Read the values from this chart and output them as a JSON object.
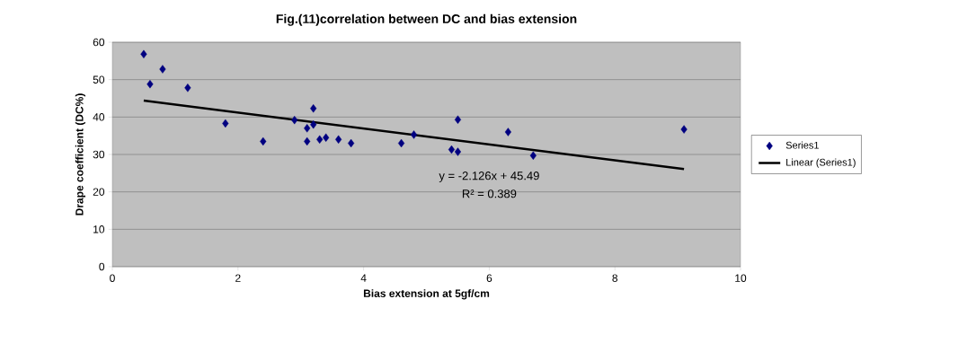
{
  "chart_data": {
    "type": "scatter",
    "title": "Fig.(11)correlation between DC and bias extension",
    "xlabel": "Bias extension at 5gf/cm",
    "ylabel": "Drape coefficient (DC%)",
    "series": [
      {
        "name": "Series1",
        "color": "#000080",
        "marker": "diamond",
        "x": [
          0.5,
          0.6,
          0.8,
          1.2,
          1.8,
          2.4,
          2.9,
          3.1,
          3.1,
          3.2,
          3.2,
          3.3,
          3.4,
          3.6,
          3.8,
          4.6,
          4.8,
          5.4,
          5.5,
          5.5,
          6.3,
          6.7,
          9.1
        ],
        "values": [
          56.8,
          48.8,
          52.8,
          47.8,
          38.3,
          33.5,
          39.2,
          37,
          33.5,
          42.3,
          38,
          34,
          34.5,
          34,
          33,
          33,
          35.3,
          31.3,
          30.7,
          39.3,
          36,
          29.7,
          36.7
        ]
      },
      {
        "name": "Linear (Series1)",
        "type": "line",
        "color": "#000000",
        "x": [
          0.5,
          9.1
        ],
        "values": [
          44.4,
          26.1
        ]
      }
    ],
    "annotations": [
      "y = -2.126x + 45.49",
      "R² = 0.389"
    ],
    "xlim": [
      0,
      10
    ],
    "ylim": [
      0,
      60
    ],
    "xticks": [
      0,
      2,
      4,
      6,
      8,
      10
    ],
    "yticks": [
      0,
      10,
      20,
      30,
      40,
      50,
      60
    ],
    "grid": "y",
    "legend": "right"
  }
}
